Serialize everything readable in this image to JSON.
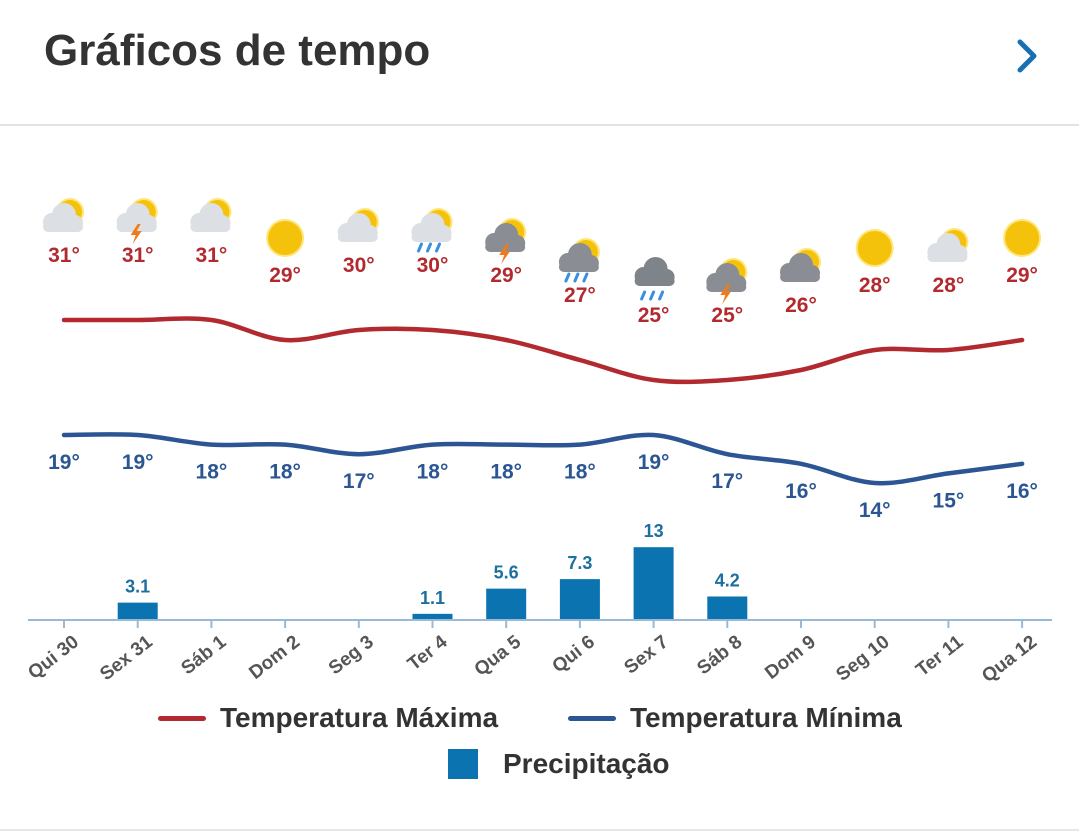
{
  "header": {
    "title": "Gráficos de tempo"
  },
  "legend": {
    "max_label": "Temperatura Máxima",
    "min_label": "Temperatura Mínima",
    "precip_label": "Precipitação"
  },
  "colors": {
    "max": "#b22a2f",
    "min": "#2b5593",
    "precip": "#0a73b0"
  },
  "chart_data": {
    "type": "line",
    "x": [
      "Qui 30",
      "Sex 31",
      "Sáb 1",
      "Dom 2",
      "Seg 3",
      "Ter 4",
      "Qua 5",
      "Qui 6",
      "Sex 7",
      "Sáb 8",
      "Dom 9",
      "Seg 10",
      "Ter 11",
      "Qua 12"
    ],
    "icons": [
      "sun-cloud",
      "sun-cloud-thunder",
      "sun-cloud",
      "sun",
      "sun-cloud",
      "sun-cloud-rain",
      "sun-cloud-thunder",
      "sun-cloud-rain",
      "cloud-rain",
      "sun-cloud-thunder",
      "sun-cloud",
      "sun",
      "sun-cloud",
      "sun"
    ],
    "series": [
      {
        "name": "Temperatura Máxima",
        "values": [
          31,
          31,
          31,
          29,
          30,
          30,
          29,
          27,
          25,
          25,
          26,
          28,
          28,
          29
        ],
        "labels": [
          "31°",
          "31°",
          "31°",
          "29°",
          "30°",
          "30°",
          "29°",
          "27°",
          "25°",
          "25°",
          "26°",
          "28°",
          "28°",
          "29°"
        ]
      },
      {
        "name": "Temperatura Mínima",
        "values": [
          19,
          19,
          18,
          18,
          17,
          18,
          18,
          18,
          19,
          17,
          16,
          14,
          15,
          16
        ],
        "labels": [
          "19°",
          "19°",
          "18°",
          "18°",
          "17°",
          "18°",
          "18°",
          "18°",
          "19°",
          "17°",
          "16°",
          "14°",
          "15°",
          "16°"
        ]
      },
      {
        "name": "Precipitação",
        "type": "bar",
        "values": [
          0,
          3.1,
          0,
          0,
          0,
          1.1,
          5.6,
          7.3,
          13,
          4.2,
          0,
          0,
          0,
          0
        ],
        "labels": [
          "",
          "3.1",
          "",
          "",
          "",
          "1.1",
          "5.6",
          "7.3",
          "13",
          "4.2",
          "",
          "",
          "",
          ""
        ]
      }
    ]
  }
}
